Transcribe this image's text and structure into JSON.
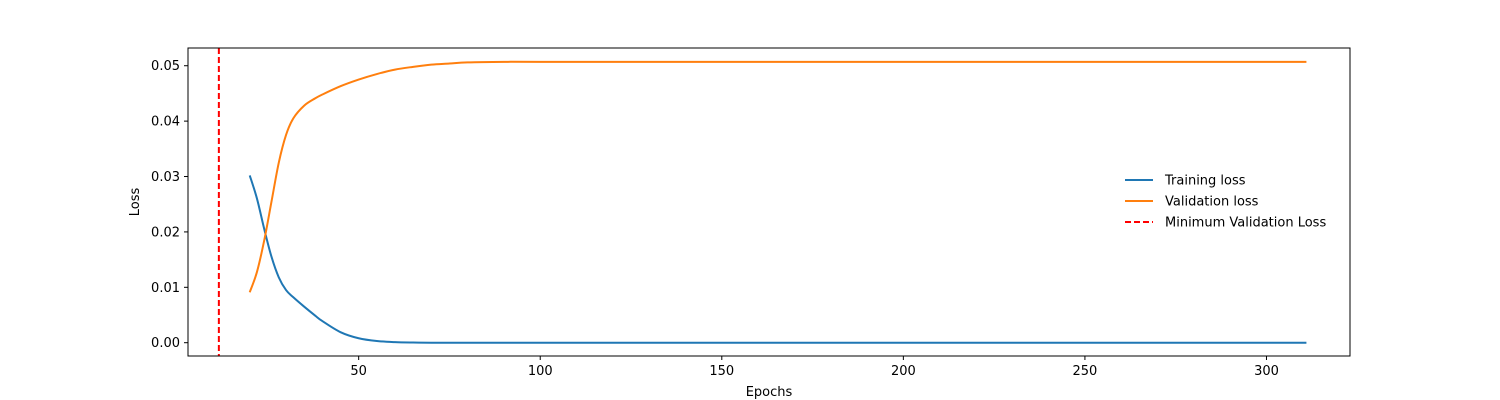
{
  "chart_data": {
    "type": "line",
    "title": "",
    "xlabel": "Epochs",
    "ylabel": "Loss",
    "xlim": [
      3,
      323
    ],
    "ylim": [
      -0.0024,
      0.0532
    ],
    "xticks": [
      50,
      100,
      150,
      200,
      250,
      300
    ],
    "yticks": [
      0.0,
      0.01,
      0.02,
      0.03,
      0.04,
      0.05
    ],
    "ytick_labels": [
      "0.00",
      "0.01",
      "0.02",
      "0.03",
      "0.04",
      "0.05"
    ],
    "grid": false,
    "legend_position": "center-right",
    "series": [
      {
        "name": "Training loss",
        "color": "#1f77b4",
        "style": "solid",
        "x": [
          20,
          22,
          24,
          26,
          28,
          30,
          32,
          35,
          38,
          40,
          45,
          50,
          55,
          60,
          65,
          70,
          80,
          100,
          150,
          200,
          250,
          311
        ],
        "y": [
          0.0302,
          0.026,
          0.0205,
          0.0155,
          0.0118,
          0.0095,
          0.0082,
          0.0065,
          0.0049,
          0.0039,
          0.0019,
          0.0008,
          0.0003,
          0.0001,
          3e-05,
          0.0,
          0.0,
          0.0,
          0.0,
          0.0,
          0.0,
          0.0
        ]
      },
      {
        "name": "Validation loss",
        "color": "#ff7f0e",
        "style": "solid",
        "x": [
          20,
          22,
          24,
          26,
          28,
          30,
          32,
          35,
          38,
          40,
          45,
          50,
          55,
          60,
          65,
          70,
          75,
          80,
          90,
          100,
          150,
          200,
          250,
          311
        ],
        "y": [
          0.0091,
          0.0128,
          0.0185,
          0.0255,
          0.0325,
          0.0375,
          0.0405,
          0.0428,
          0.0441,
          0.0448,
          0.0463,
          0.0475,
          0.0485,
          0.0493,
          0.0498,
          0.0502,
          0.0504,
          0.0506,
          0.0507,
          0.0507,
          0.0507,
          0.0507,
          0.0507,
          0.0507
        ]
      }
    ],
    "vlines": [
      {
        "name": "Minimum Validation Loss",
        "color": "#ff0000",
        "style": "dashed",
        "x": 11.5
      }
    ]
  }
}
